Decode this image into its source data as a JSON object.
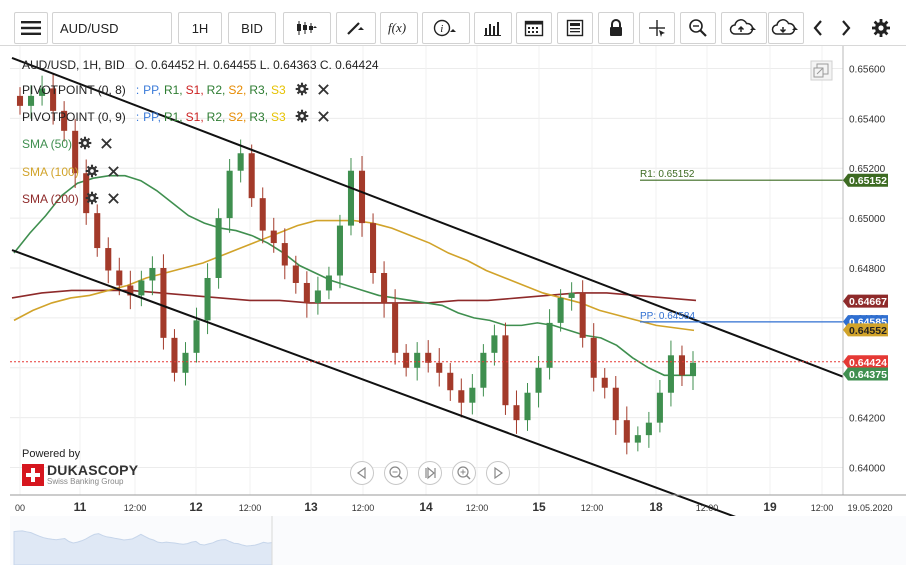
{
  "toolbar": {
    "menu_icon": "hamburger-menu-icon",
    "symbol": "AUD/USD",
    "timeframe": "1H",
    "price_side": "BID",
    "buttons": [
      {
        "name": "candle-type-icon"
      },
      {
        "name": "draw-tool-icon"
      },
      {
        "name": "function-icon"
      },
      {
        "name": "info-icon"
      },
      {
        "name": "bar-chart-icon"
      },
      {
        "name": "calendar-icon"
      },
      {
        "name": "calculator-icon"
      },
      {
        "name": "lock-icon"
      },
      {
        "name": "crosshair-icon"
      },
      {
        "name": "zoom-icon"
      },
      {
        "name": "cloud-upload-icon"
      },
      {
        "name": "cloud-download-icon"
      },
      {
        "name": "chevron-left-icon"
      },
      {
        "name": "chevron-right-icon"
      },
      {
        "name": "gear-icon"
      }
    ]
  },
  "header": {
    "instrument_line": "AUD/USD, 1H, BID",
    "ohlc": "O. 0.64452 H. 0.64455 L. 0.64363 C. 0.64424"
  },
  "indicators": [
    {
      "label": "PIVOTPOINT (0, 8)",
      "levels": [
        {
          "text": "PP",
          "color": "#3a7ad9"
        },
        {
          "text": "R1",
          "color": "#2e7d32"
        },
        {
          "text": "S1",
          "color": "#cc2222"
        },
        {
          "text": "R2",
          "color": "#2e7d32"
        },
        {
          "text": "S2",
          "color": "#e68a00"
        },
        {
          "text": "R3",
          "color": "#2e7d32"
        },
        {
          "text": "S3",
          "color": "#e6c200"
        }
      ]
    },
    {
      "label": "PIVOTPOINT (0, 9)",
      "levels": [
        {
          "text": "PP",
          "color": "#3a7ad9"
        },
        {
          "text": "R1",
          "color": "#2e7d32"
        },
        {
          "text": "S1",
          "color": "#cc2222"
        },
        {
          "text": "R2",
          "color": "#2e7d32"
        },
        {
          "text": "S2",
          "color": "#e68a00"
        },
        {
          "text": "R3",
          "color": "#2e7d32"
        },
        {
          "text": "S3",
          "color": "#e6c200"
        }
      ]
    },
    {
      "label": "SMA (50)",
      "color": "#3f8f4f"
    },
    {
      "label": "SMA (100)",
      "color": "#d1a32a"
    },
    {
      "label": "SMA (200)",
      "color": "#8e2a2a"
    }
  ],
  "branding": {
    "powered_by": "Powered by",
    "name": "DUKASCOPY",
    "subtitle": "Swiss Banking Group"
  },
  "annotations": {
    "r1_label": "R1: 0.65152",
    "pp_label": "PP: 0.64584"
  },
  "price_tags": [
    {
      "value": "0.65152",
      "bg": "#3d6b22",
      "fg": "#ffffff"
    },
    {
      "value": "0.64667",
      "bg": "#8e2a2a",
      "fg": "#ffffff"
    },
    {
      "value": "0.64585",
      "bg": "#2f6fd1",
      "fg": "#ffffff"
    },
    {
      "value": "0.64552",
      "bg": "#d1a32a",
      "fg": "#222222"
    },
    {
      "value": "0.64424",
      "bg": "#e53935",
      "fg": "#ffffff"
    },
    {
      "value": "0.64375",
      "bg": "#3f8f4f",
      "fg": "#ffffff"
    }
  ],
  "colors": {
    "bull_candle": "#3f8f4f",
    "bear_candle": "#a33a2a",
    "sma50": "#3f8f4f",
    "sma100": "#d1a32a",
    "sma200": "#8e2a2a",
    "r1_line": "#3d6b22",
    "pp_line": "#2f6fd1",
    "current_price_line": "#e53935"
  },
  "chart_data": {
    "type": "candlestick",
    "instrument": "AUD/USD",
    "timeframe": "1H",
    "ylim": [
      0.6389,
      0.6569
    ],
    "y_ticks": [
      "0.65600",
      "0.65400",
      "0.65200",
      "0.65000",
      "0.64800",
      "0.64600",
      "0.64400",
      "0.64200",
      "0.64000"
    ],
    "x_ticks": [
      "00",
      "11",
      "12:00",
      "12",
      "12:00",
      "13",
      "12:00",
      "14",
      "12:00",
      "15",
      "12:00",
      "18",
      "12:00",
      "19",
      "12:00",
      "19.05.2020"
    ],
    "current_price": 0.64424,
    "pivot_r1": 0.65152,
    "pivot_pp": 0.64584,
    "channel": {
      "upper": [
        [
          0,
          0.6563
        ],
        [
          61,
          0.64595
        ]
      ],
      "lower": [
        [
          0,
          0.6486
        ],
        [
          61,
          0.63865
        ]
      ]
    },
    "closes": [
      0.6545,
      0.6549,
      0.6552,
      0.6543,
      0.6535,
      0.6518,
      0.6502,
      0.6488,
      0.6479,
      0.6473,
      0.6469,
      0.6475,
      0.648,
      0.6452,
      0.6438,
      0.6446,
      0.6459,
      0.6476,
      0.65,
      0.6519,
      0.6526,
      0.6508,
      0.6495,
      0.649,
      0.6481,
      0.6474,
      0.6466,
      0.6471,
      0.6477,
      0.6497,
      0.6519,
      0.6498,
      0.6478,
      0.6466,
      0.6446,
      0.644,
      0.6446,
      0.6442,
      0.6438,
      0.6431,
      0.6426,
      0.6432,
      0.6446,
      0.6453,
      0.6425,
      0.6419,
      0.643,
      0.644,
      0.6458,
      0.6468,
      0.647,
      0.6452,
      0.6436,
      0.6432,
      0.6419,
      0.641,
      0.6413,
      0.6418,
      0.643,
      0.6445,
      0.6437,
      0.6442
    ],
    "sma50": [
      0.6486,
      0.6494,
      0.6501,
      0.6509,
      0.6514,
      0.6516,
      0.6517,
      0.6517,
      0.6515,
      0.6511,
      0.6506,
      0.6501,
      0.6498,
      0.6496,
      0.6495,
      0.6493,
      0.649,
      0.6486,
      0.6481,
      0.6478,
      0.6475,
      0.6473,
      0.6471,
      0.6469,
      0.6468,
      0.6467,
      0.6466,
      0.6465,
      0.6462,
      0.646,
      0.6459,
      0.6457,
      0.6457,
      0.6458,
      0.6457,
      0.6455,
      0.6453,
      0.6452,
      0.6449,
      0.6444,
      0.644,
      0.6437,
      0.6437,
      0.6437
    ],
    "sma100": [
      0.6459,
      0.6463,
      0.6466,
      0.6468,
      0.6469,
      0.6471,
      0.6473,
      0.6476,
      0.6478,
      0.648,
      0.6482,
      0.6485,
      0.6488,
      0.6491,
      0.6494,
      0.6497,
      0.6499,
      0.6499,
      0.6499,
      0.6498,
      0.6496,
      0.6493,
      0.649,
      0.6486,
      0.6483,
      0.6479,
      0.6476,
      0.6473,
      0.647,
      0.6468,
      0.6466,
      0.6463,
      0.6461,
      0.6459,
      0.6457,
      0.6456,
      0.6455
    ],
    "sma200": [
      0.6468,
      0.647,
      0.6471,
      0.6471,
      0.6471,
      0.647,
      0.6469,
      0.6468,
      0.6467,
      0.6467,
      0.6466,
      0.6466,
      0.6466,
      0.6466,
      0.6466,
      0.6467,
      0.6467,
      0.6468,
      0.6469,
      0.647,
      0.647,
      0.6469,
      0.6468,
      0.6467
    ]
  }
}
